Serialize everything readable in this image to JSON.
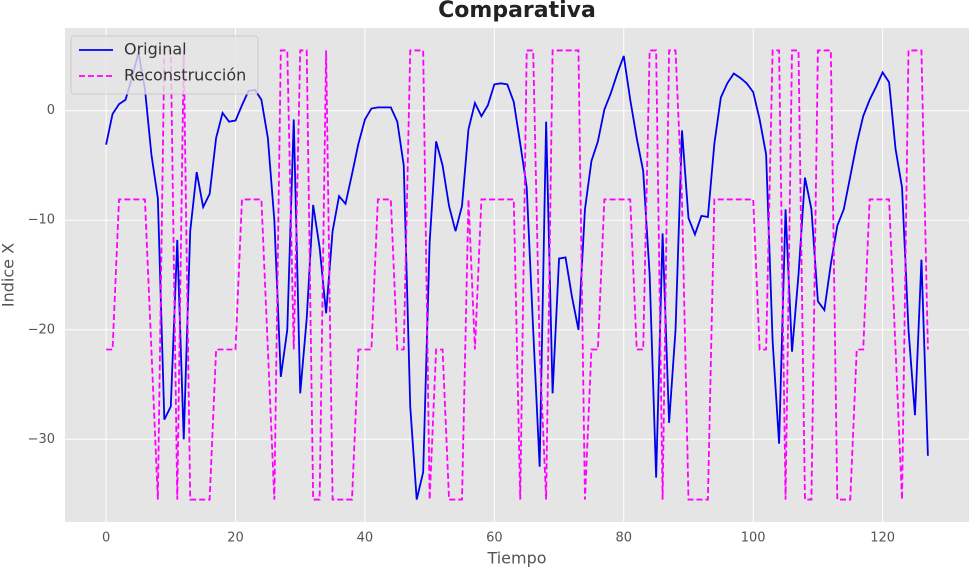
{
  "chart_data": {
    "type": "line",
    "title": "Comparativa",
    "xlabel": "Tiempo",
    "ylabel": "Indice X",
    "x": [
      0,
      1,
      2,
      3,
      4,
      5,
      6,
      7,
      8,
      9,
      10,
      11,
      12,
      13,
      14,
      15,
      16,
      17,
      18,
      19,
      20,
      21,
      22,
      23,
      24,
      25,
      26,
      27,
      28,
      29,
      30,
      31,
      32,
      33,
      34,
      35,
      36,
      37,
      38,
      39,
      40,
      41,
      42,
      43,
      44,
      45,
      46,
      47,
      48,
      49,
      50,
      51,
      52,
      53,
      54,
      55,
      56,
      57,
      58,
      59,
      60,
      61,
      62,
      63,
      64,
      65,
      66,
      67,
      68,
      69,
      70,
      71,
      72,
      73,
      74,
      75,
      76,
      77,
      78,
      79,
      80,
      81,
      82,
      83,
      84,
      85,
      86,
      87,
      88,
      89,
      90,
      91,
      92,
      93,
      94,
      95,
      96,
      97,
      98,
      99,
      100,
      101,
      102,
      103,
      104,
      105,
      106,
      107,
      108,
      109,
      110,
      111,
      112,
      113,
      114,
      115,
      116,
      117,
      118,
      119,
      120,
      121,
      122,
      123,
      124,
      125,
      126,
      127
    ],
    "series": [
      {
        "name": "Original",
        "color": "#0000ee",
        "dash": false,
        "values": [
          -3.1,
          -0.3,
          0.6,
          1,
          3,
          5.3,
          2,
          -4,
          -8,
          -28.2,
          -27,
          -11.8,
          -30,
          -11,
          -5.6,
          -8.8,
          -7.6,
          -2.5,
          -0.2,
          -1,
          -0.9,
          0.5,
          1.8,
          1.9,
          1,
          -2.5,
          -10,
          -24.3,
          -20,
          -0.8,
          -25.8,
          -19,
          -8.6,
          -12.5,
          -18.5,
          -11,
          -7.8,
          -8.5,
          -5.8,
          -3,
          -0.8,
          0.2,
          0.3,
          0.3,
          0.3,
          -1,
          -5,
          -27,
          -35.5,
          -33,
          -12,
          -2.8,
          -5,
          -8.7,
          -11,
          -8.7,
          -1.7,
          0.7,
          -0.5,
          0.5,
          2.4,
          2.5,
          2.4,
          0.8,
          -3,
          -7,
          -20,
          -32.5,
          -1,
          -25.8,
          -13.5,
          -13.4,
          -17,
          -20,
          -9,
          -4.6,
          -2.8,
          0.1,
          1.6,
          3.4,
          5,
          1,
          -2.5,
          -5.5,
          -15,
          -33.5,
          -11.2,
          -28.5,
          -20,
          -1.8,
          -9.8,
          -11.3,
          -9.6,
          -9.7,
          -3,
          1.2,
          2.5,
          3.4,
          3,
          2.5,
          1.7,
          -0.8,
          -4,
          -21,
          -30.4,
          -9,
          -22,
          -15,
          -6.1,
          -9,
          -17.4,
          -18.2,
          -14,
          -10.5,
          -9,
          -6,
          -3,
          -0.5,
          1,
          2.2,
          3.5,
          2.6,
          -3.5,
          -7,
          -20,
          -27.8,
          -13.6,
          -31.5
        ]
      },
      {
        "name": "Reconstrucción",
        "color": "#ff00ff",
        "dash": true,
        "values": [
          -21.8,
          -21.8,
          -8.1,
          -8.1,
          -8.1,
          -8.1,
          -8.1,
          -21.8,
          -35.5,
          5.5,
          5.5,
          -35.5,
          5.5,
          -35.5,
          -35.5,
          -35.5,
          -35.5,
          -21.8,
          -21.8,
          -21.8,
          -21.8,
          -8.1,
          -8.1,
          -8.1,
          -8.1,
          -21.8,
          -35.5,
          5.5,
          5.5,
          -21.8,
          5.5,
          5.5,
          -35.5,
          -35.5,
          5.5,
          -35.5,
          -35.5,
          -35.5,
          -35.5,
          -21.8,
          -21.8,
          -21.8,
          -8.1,
          -8.1,
          -8.1,
          -21.8,
          -21.8,
          5.5,
          5.5,
          5.5,
          -35.5,
          -21.8,
          -21.8,
          -35.5,
          -35.5,
          -35.5,
          -8.1,
          -21.8,
          -8.1,
          -8.1,
          -8.1,
          -8.1,
          -8.1,
          -8.1,
          -35.5,
          5.5,
          5.5,
          -21.8,
          -35.5,
          5.5,
          5.5,
          5.5,
          5.5,
          5.5,
          -35.5,
          -21.8,
          -21.8,
          -8.1,
          -8.1,
          -8.1,
          -8.1,
          -8.1,
          -21.8,
          -21.8,
          5.5,
          5.5,
          -35.5,
          5.5,
          5.5,
          -8.1,
          -35.5,
          -35.5,
          -35.5,
          -35.5,
          -8.1,
          -8.1,
          -8.1,
          -8.1,
          -8.1,
          -8.1,
          -8.1,
          -21.8,
          -21.8,
          5.5,
          5.5,
          -35.5,
          5.5,
          5.5,
          -35.5,
          -35.5,
          5.5,
          5.5,
          5.5,
          -35.5,
          -35.5,
          -35.5,
          -21.8,
          -21.8,
          -8.1,
          -8.1,
          -8.1,
          -8.1,
          -21.8,
          -35.5,
          5.5,
          5.5,
          5.5,
          -21.8
        ]
      }
    ],
    "xlim": [
      -6.35,
      133.35
    ],
    "ylim": [
      -37.55,
      7.55
    ],
    "xticks": [
      0,
      20,
      40,
      60,
      80,
      100,
      120
    ],
    "yticks": [
      {
        "value": -30,
        "label": "−30"
      },
      {
        "value": -20,
        "label": "−20"
      },
      {
        "value": -10,
        "label": "−10"
      },
      0
    ],
    "grid": true,
    "legend": "upper left"
  }
}
